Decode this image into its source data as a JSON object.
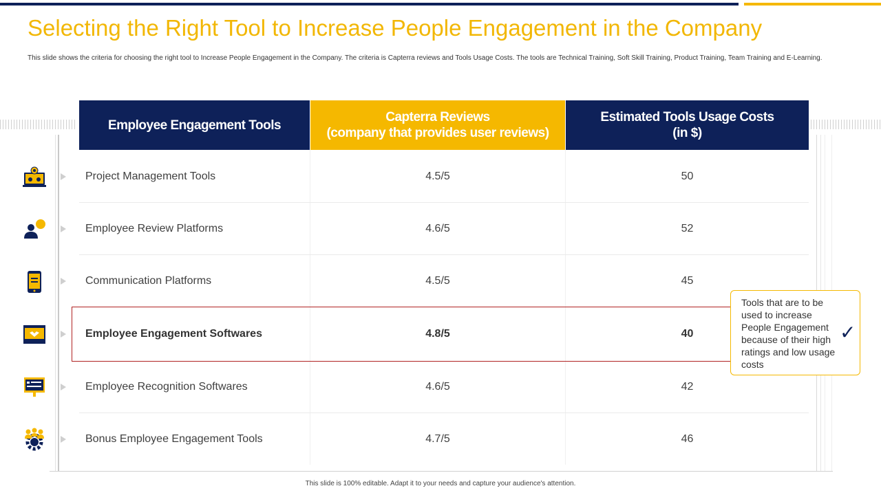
{
  "slide": {
    "title": "Selecting the Right Tool to Increase People Engagement in the Company",
    "description": "This slide shows the criteria for choosing the right tool to Increase People  Engagement  in the Company.  The criteria is Capterra reviews and Tools Usage Costs. The tools are Technical Training,  Soft Skill Training,  Product Training,  Team Training and E-Learning.",
    "footer": "This slide is 100% editable.  Adapt it to your needs and capture your audience's attention."
  },
  "table": {
    "headers": {
      "tools": "Employee Engagement Tools",
      "reviews_line1": "Capterra Reviews",
      "reviews_line2": "(company that provides user reviews)",
      "costs_line1": "Estimated Tools Usage Costs",
      "costs_line2": "(in $)"
    },
    "rows": [
      {
        "name": "Project Management Tools",
        "review": "4.5/5",
        "cost": "50",
        "icon": "laptop-gears-icon"
      },
      {
        "name": "Employee Review Platforms",
        "review": "4.6/5",
        "cost": "52",
        "icon": "user-chat-icon"
      },
      {
        "name": "Communication Platforms",
        "review": "4.5/5",
        "cost": "45",
        "icon": "mobile-phone-icon"
      },
      {
        "name": "Employee Engagement Softwares",
        "review": "4.8/5",
        "cost": "40",
        "icon": "monitor-handshake-icon"
      },
      {
        "name": "Employee Recognition Softwares",
        "review": "4.6/5",
        "cost": "42",
        "icon": "presentation-board-icon"
      },
      {
        "name": "Bonus Employee Engagement Tools",
        "review": "4.7/5",
        "cost": "46",
        "icon": "team-gear-icon"
      }
    ]
  },
  "callout": {
    "text": "Tools that are to be used to increase People Engagement because of their high ratings and low usage costs",
    "check_icon": "checkmark-icon"
  },
  "colors": {
    "navy": "#0e2159",
    "gold": "#f5b800",
    "title": "#f2b705",
    "highlight_border": "#b02121"
  }
}
